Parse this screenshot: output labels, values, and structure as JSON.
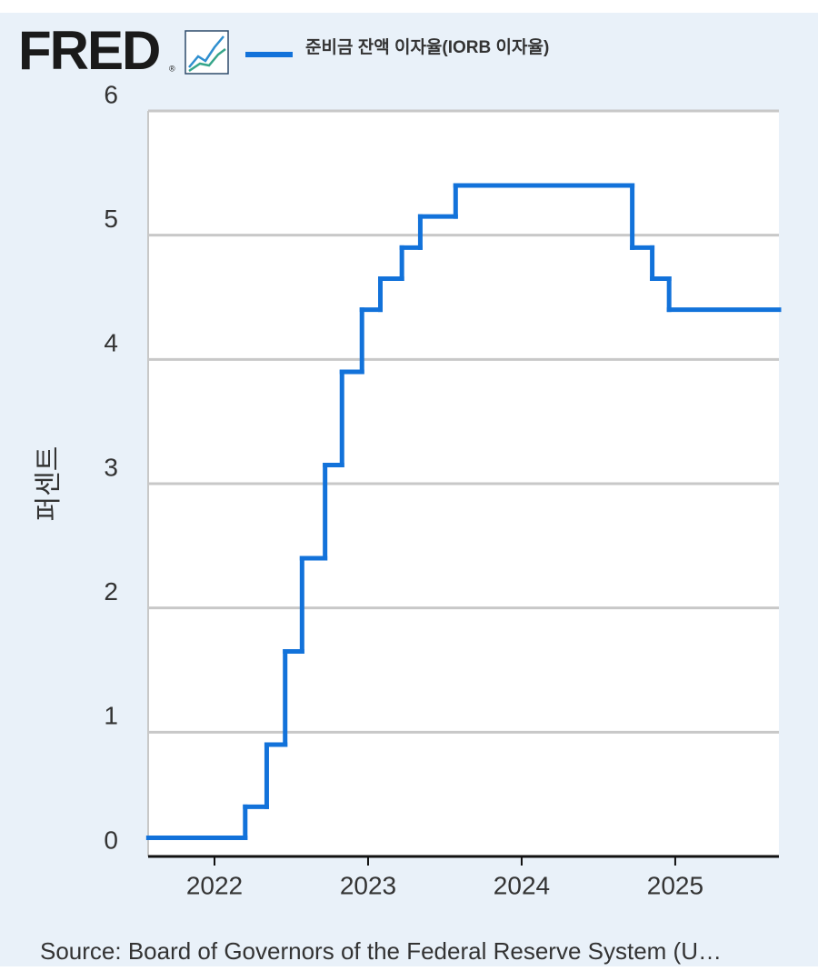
{
  "chart_data": {
    "type": "step",
    "logo": "FRED",
    "logo_mark": "®",
    "ylabel": "퍼센트",
    "source": "Source: Board of Governors of the Federal Reserve System (U…",
    "grid": true,
    "series": [
      {
        "name": "준비금 잔액 이자율(IORB 이자율)",
        "color": "#1272da",
        "x": [
          2021.57,
          2022.2,
          2022.34,
          2022.46,
          2022.57,
          2022.72,
          2022.83,
          2022.96,
          2023.08,
          2023.22,
          2023.34,
          2023.57,
          2024.72,
          2024.85,
          2024.96,
          2025.675
        ],
        "values": [
          0.15,
          0.4,
          0.9,
          1.65,
          2.4,
          3.15,
          3.9,
          4.4,
          4.65,
          4.9,
          5.15,
          5.4,
          4.9,
          4.65,
          4.4,
          4.4
        ]
      }
    ],
    "xlim": [
      2021.568,
      2025.675
    ],
    "xticks": [
      2022,
      2023,
      2024,
      2025
    ],
    "ylim": [
      0,
      6
    ],
    "yticks": [
      0,
      1,
      2,
      3,
      4,
      5,
      6
    ]
  }
}
